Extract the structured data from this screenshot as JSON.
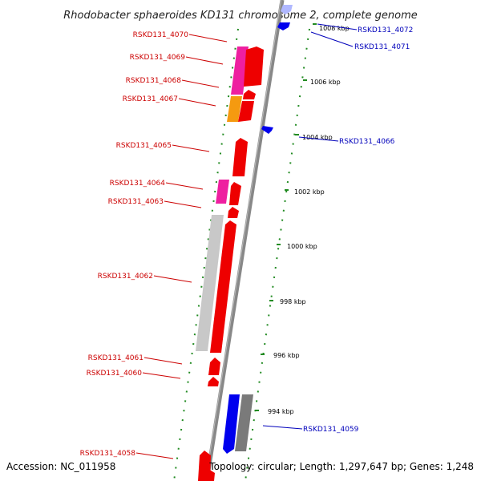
{
  "title": "Rhodobacter sphaeroides KD131 chromosome 2, complete genome",
  "footer": {
    "accession": "Accession: NC_011958",
    "topology": "Topology: circular; Length: 1,297,647 bp; Genes: 1,248"
  },
  "colors": {
    "forward_label": "#cc0000",
    "reverse_label": "#0000bb",
    "ruler": "#888888",
    "tick": "#228b22"
  },
  "ticks": [
    {
      "label": "1008 kbp"
    },
    {
      "label": "1006 kbp"
    },
    {
      "label": "1004 kbp"
    },
    {
      "label": "1002 kbp"
    },
    {
      "label": "1000 kbp"
    },
    {
      "label": "998 kbp"
    },
    {
      "label": "996 kbp"
    },
    {
      "label": "994 kbp"
    }
  ],
  "genes": [
    {
      "label": "RSKD131_4070",
      "strand": "forward",
      "color": "#ee0000"
    },
    {
      "label": "RSKD131_4069",
      "strand": "forward",
      "color": "#ee0000"
    },
    {
      "label": "RSKD131_4068",
      "strand": "forward",
      "color": "#ee0000"
    },
    {
      "label": "RSKD131_4067",
      "strand": "forward",
      "color": "#ee0000"
    },
    {
      "label": "RSKD131_4065",
      "strand": "forward",
      "color": "#ee0000"
    },
    {
      "label": "RSKD131_4064",
      "strand": "forward",
      "color": "#ee0000"
    },
    {
      "label": "RSKD131_4063",
      "strand": "forward",
      "color": "#ee0000"
    },
    {
      "label": "RSKD131_4062",
      "strand": "forward",
      "color": "#ee0000"
    },
    {
      "label": "RSKD131_4061",
      "strand": "forward",
      "color": "#ee0000"
    },
    {
      "label": "RSKD131_4060",
      "strand": "forward",
      "color": "#ee0000"
    },
    {
      "label": "RSKD131_4058",
      "strand": "forward",
      "color": "#ee0000"
    },
    {
      "label": "RSKD131_4072",
      "strand": "reverse",
      "color": "#0000ee"
    },
    {
      "label": "RSKD131_4071",
      "strand": "reverse",
      "color": "#0000ee"
    },
    {
      "label": "RSKD131_4066",
      "strand": "reverse",
      "color": "#0000ee"
    },
    {
      "label": "RSKD131_4059",
      "strand": "reverse",
      "color": "#0000ee"
    }
  ],
  "feature_colors": {
    "pink": "#ee1fa0",
    "orange": "#f59a10",
    "light_gray": "#c8c8c8",
    "dark_gray": "#7a7a7a",
    "blue": "#0000ee",
    "red": "#ee0000"
  }
}
